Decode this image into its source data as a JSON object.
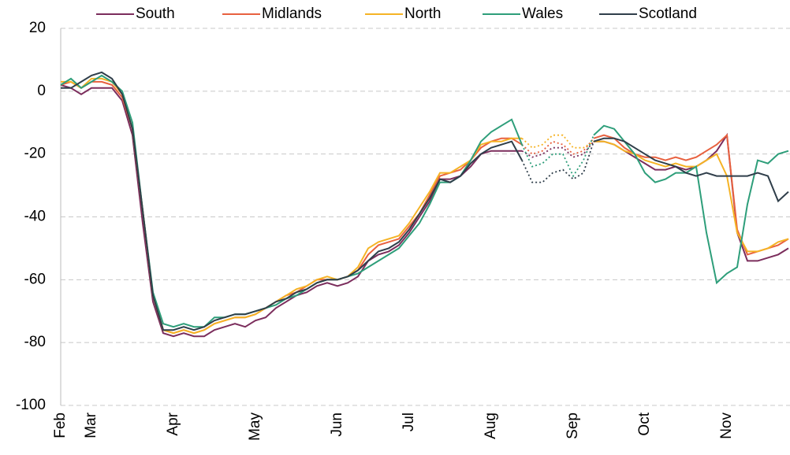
{
  "chart_data": {
    "type": "line",
    "categories": [
      "Feb",
      null,
      null,
      "Mar",
      null,
      null,
      null,
      null,
      null,
      null,
      null,
      "Apr",
      null,
      null,
      null,
      null,
      null,
      null,
      null,
      "May",
      null,
      null,
      null,
      null,
      null,
      null,
      null,
      "Jun",
      null,
      null,
      null,
      null,
      null,
      null,
      "Jul",
      null,
      null,
      null,
      null,
      null,
      null,
      null,
      "Aug",
      null,
      null,
      null,
      null,
      null,
      null,
      null,
      "Sep",
      null,
      null,
      null,
      null,
      null,
      null,
      "Oct",
      null,
      null,
      null,
      null,
      null,
      null,
      null,
      "Nov",
      null,
      null,
      null,
      null,
      null,
      null
    ],
    "series": [
      {
        "name": "South",
        "color": "#7b2d5c",
        "values": [
          2,
          1,
          -1,
          1,
          1,
          1,
          -3,
          -14,
          -42,
          -67,
          -77,
          -78,
          -77,
          -78,
          -78,
          -76,
          -75,
          -74,
          -75,
          -73,
          -72,
          -69,
          -67,
          -65,
          -64,
          -62,
          -61,
          -62,
          -61,
          -59,
          -54,
          -52,
          -51,
          -49,
          -45,
          -40,
          -35,
          -28,
          -28,
          -27,
          -24,
          -20,
          -19,
          -19,
          -19,
          -19,
          -21,
          -20,
          -18,
          -18,
          -21,
          -20,
          -16,
          -16,
          -17,
          -19,
          -21,
          -23,
          -25,
          -25,
          -24,
          -25,
          -24,
          -22,
          -19,
          -14,
          -45,
          -54,
          -54,
          -53,
          -52,
          -50
        ]
      },
      {
        "name": "Midlands",
        "color": "#e8613f",
        "values": [
          2,
          3,
          1,
          3,
          3,
          2,
          -2,
          -12,
          -38,
          -65,
          -76,
          -77,
          -76,
          -77,
          -76,
          -74,
          -73,
          -72,
          -72,
          -71,
          -69,
          -67,
          -65,
          -64,
          -62,
          -60,
          -60,
          -60,
          -59,
          -57,
          -52,
          -49,
          -48,
          -47,
          -43,
          -39,
          -33,
          -27,
          -26,
          -25,
          -22,
          -18,
          -16,
          -15,
          -15,
          -17,
          -20,
          -19,
          -16,
          -17,
          -20,
          -19,
          -15,
          -14,
          -15,
          -18,
          -20,
          -21,
          -21,
          -22,
          -21,
          -22,
          -21,
          -19,
          -17,
          -14,
          -44,
          -52,
          -51,
          -50,
          -49,
          -47
        ]
      },
      {
        "name": "North",
        "color": "#f5b325",
        "values": [
          3,
          3,
          1,
          4,
          4,
          3,
          -1,
          -12,
          -38,
          -65,
          -76,
          -77,
          -76,
          -77,
          -76,
          -74,
          -73,
          -72,
          -72,
          -71,
          -69,
          -67,
          -65,
          -63,
          -62,
          -60,
          -59,
          -60,
          -59,
          -56,
          -50,
          -48,
          -47,
          -46,
          -42,
          -37,
          -32,
          -26,
          -26,
          -24,
          -22,
          -17,
          -16,
          -16,
          -15,
          -15,
          -18,
          -17,
          -14,
          -14,
          -18,
          -18,
          -16,
          -16,
          -17,
          -19,
          -20,
          -22,
          -23,
          -24,
          -23,
          -24,
          -24,
          -22,
          -20,
          -27,
          -45,
          -51,
          -51,
          -50,
          -48,
          -47
        ]
      },
      {
        "name": "Wales",
        "color": "#2e9e7a",
        "values": [
          2,
          4,
          1,
          3,
          5,
          3,
          0,
          -10,
          -38,
          -64,
          -74,
          -75,
          -74,
          -75,
          -75,
          -72,
          -72,
          -71,
          -71,
          -70,
          -69,
          -68,
          -66,
          -65,
          -63,
          -61,
          -60,
          -60,
          -59,
          -58,
          -56,
          -54,
          -52,
          -50,
          -46,
          -42,
          -36,
          -29,
          -29,
          -27,
          -22,
          -16,
          -13,
          -11,
          -9,
          -17,
          -24,
          -23,
          -20,
          -20,
          -27,
          -22,
          -14,
          -11,
          -12,
          -16,
          -20,
          -26,
          -29,
          -28,
          -26,
          -26,
          -24,
          -45,
          -61,
          -58,
          -56,
          -36,
          -22,
          -23,
          -20,
          -19
        ]
      },
      {
        "name": "Scotland",
        "color": "#2f3e4a",
        "values": [
          1,
          1,
          3,
          5,
          6,
          4,
          -1,
          -12,
          -38,
          -65,
          -76,
          -76,
          -75,
          -76,
          -75,
          -73,
          -72,
          -71,
          -71,
          -70,
          -69,
          -67,
          -66,
          -64,
          -63,
          -61,
          -60,
          -60,
          -59,
          -57,
          -54,
          -51,
          -50,
          -48,
          -44,
          -39,
          -34,
          -28,
          -29,
          -27,
          -23,
          -20,
          -18,
          -17,
          -16,
          -22,
          -29,
          -29,
          -26,
          -25,
          -28,
          -26,
          -16,
          -15,
          -15,
          -16,
          -18,
          -20,
          -22,
          -23,
          -24,
          -26,
          -27,
          -26,
          -27,
          -27,
          -27,
          -27,
          -26,
          -27,
          -35,
          -32
        ]
      }
    ],
    "dotted_range": [
      45,
      52
    ],
    "ylim": [
      -100,
      20
    ],
    "yticks": [
      -100,
      -80,
      -60,
      -40,
      -20,
      0,
      20
    ],
    "grid": true
  }
}
